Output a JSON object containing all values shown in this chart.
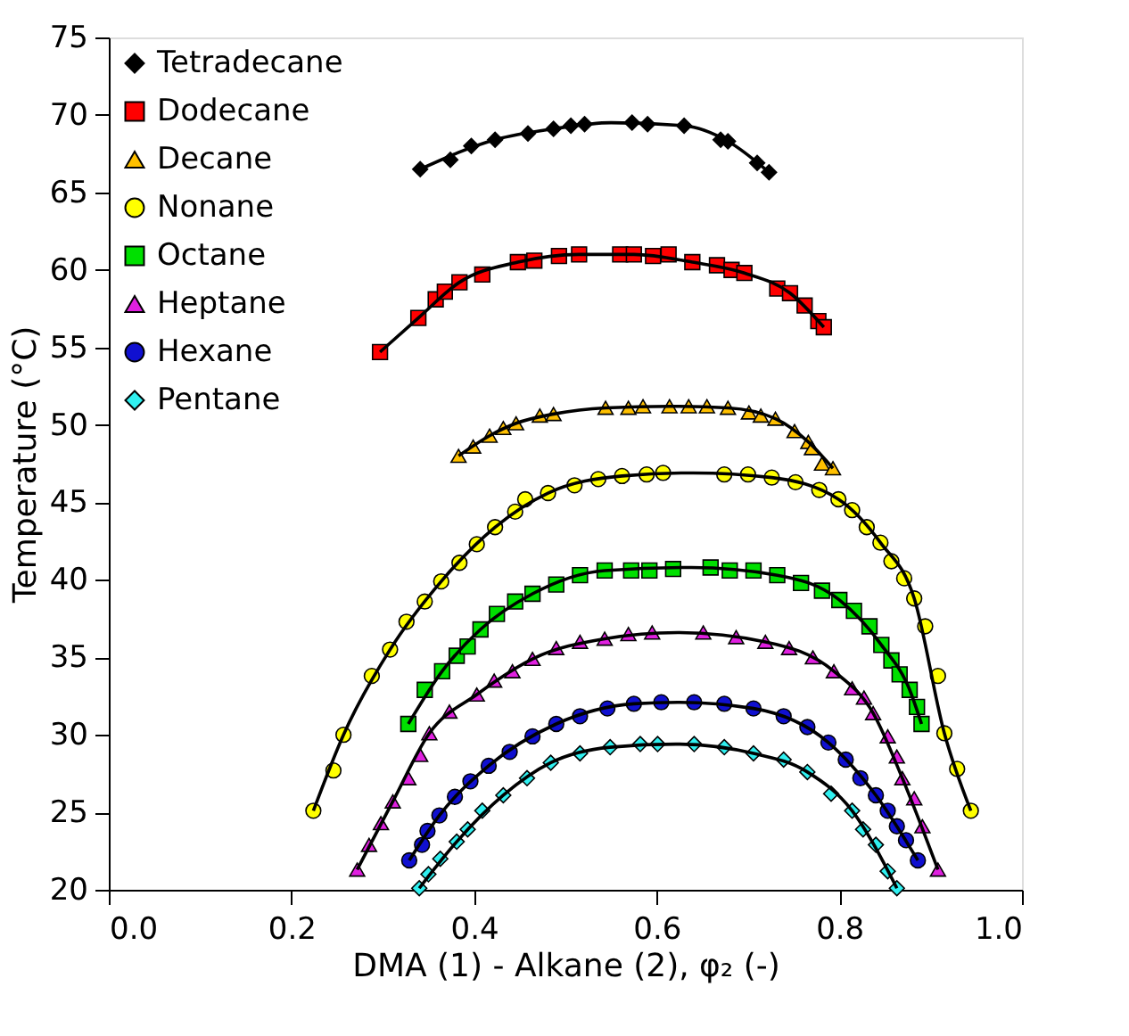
{
  "chart_data": {
    "type": "scatter",
    "xlabel": "DMA (1) - Alkane (2), φ₂ (-)",
    "ylabel": "Temperature (°C)",
    "xlim": [
      0,
      1
    ],
    "ylim": [
      20,
      75
    ],
    "xticks": [
      {
        "value": 0,
        "label": "0.0"
      },
      0.2,
      0.4,
      0.6,
      0.8,
      {
        "value": 1,
        "label": "1.0"
      }
    ],
    "yticks": [
      20,
      25,
      30,
      35,
      40,
      45,
      50,
      55,
      60,
      65,
      70,
      75
    ],
    "grid": false,
    "legend": "top left",
    "series": [
      {
        "name": "Tetradecane",
        "color": "#000000",
        "marker": "diamond",
        "x": [
          0.341,
          0.374,
          0.397,
          0.423,
          0.459,
          0.487,
          0.506,
          0.521,
          0.573,
          0.59,
          0.63,
          0.67,
          0.678,
          0.71,
          0.723
        ],
        "values": [
          66.5,
          67.1,
          68.0,
          68.4,
          68.8,
          69.1,
          69.3,
          69.4,
          69.5,
          69.4,
          69.3,
          68.4,
          68.3,
          66.9,
          66.3
        ]
      },
      {
        "name": "Dodecane",
        "color": "#ff0000",
        "marker": "square",
        "x": [
          0.297,
          0.339,
          0.358,
          0.368,
          0.384,
          0.409,
          0.448,
          0.466,
          0.493,
          0.515,
          0.56,
          0.575,
          0.596,
          0.613,
          0.639,
          0.666,
          0.682,
          0.696,
          0.732,
          0.746,
          0.762,
          0.777,
          0.783
        ],
        "values": [
          54.7,
          56.9,
          58.1,
          58.6,
          59.2,
          59.7,
          60.5,
          60.6,
          60.9,
          61.0,
          61.0,
          61.0,
          60.9,
          61.0,
          60.5,
          60.3,
          60.0,
          59.8,
          58.8,
          58.5,
          57.7,
          56.7,
          56.3
        ]
      },
      {
        "name": "Decane",
        "color": "#ffc000",
        "marker": "triangle",
        "x": [
          0.383,
          0.399,
          0.417,
          0.432,
          0.446,
          0.472,
          0.487,
          0.544,
          0.569,
          0.585,
          0.614,
          0.635,
          0.655,
          0.678,
          0.701,
          0.714,
          0.73,
          0.751,
          0.766,
          0.77,
          0.781,
          0.793
        ],
        "values": [
          48.0,
          48.6,
          49.3,
          49.8,
          50.1,
          50.6,
          50.7,
          51.1,
          51.1,
          51.2,
          51.2,
          51.2,
          51.2,
          51.1,
          50.8,
          50.6,
          50.4,
          49.6,
          48.9,
          48.5,
          47.5,
          47.2
        ]
      },
      {
        "name": "Nonane",
        "color": "#ffff00",
        "marker": "circle",
        "x": [
          0.224,
          0.246,
          0.257,
          0.288,
          0.308,
          0.326,
          0.346,
          0.364,
          0.384,
          0.403,
          0.423,
          0.445,
          0.456,
          0.481,
          0.51,
          0.536,
          0.562,
          0.589,
          0.607,
          0.674,
          0.7,
          0.726,
          0.752,
          0.778,
          0.799,
          0.814,
          0.83,
          0.845,
          0.857,
          0.871,
          0.882,
          0.894,
          0.908,
          0.915,
          0.929,
          0.944
        ],
        "values": [
          25.1,
          27.7,
          30.0,
          33.8,
          35.5,
          37.3,
          38.6,
          39.9,
          41.1,
          42.3,
          43.4,
          44.4,
          45.2,
          45.6,
          46.1,
          46.5,
          46.7,
          46.8,
          46.9,
          46.8,
          46.8,
          46.6,
          46.3,
          45.8,
          45.2,
          44.5,
          43.4,
          42.4,
          41.2,
          40.1,
          38.8,
          37.0,
          33.8,
          30.1,
          27.8,
          25.1
        ]
      },
      {
        "name": "Octane",
        "color": "#00e000",
        "marker": "square",
        "x": [
          0.328,
          0.346,
          0.365,
          0.381,
          0.393,
          0.407,
          0.425,
          0.445,
          0.464,
          0.49,
          0.516,
          0.543,
          0.572,
          0.592,
          0.618,
          0.659,
          0.68,
          0.706,
          0.732,
          0.758,
          0.781,
          0.8,
          0.816,
          0.833,
          0.846,
          0.857,
          0.866,
          0.877,
          0.885,
          0.89
        ],
        "values": [
          30.7,
          32.9,
          34.1,
          35.1,
          35.7,
          36.8,
          37.8,
          38.6,
          39.1,
          39.7,
          40.3,
          40.6,
          40.6,
          40.6,
          40.7,
          40.8,
          40.6,
          40.6,
          40.3,
          39.8,
          39.3,
          38.7,
          38.0,
          37.0,
          35.8,
          34.8,
          33.9,
          32.9,
          31.8,
          30.7
        ]
      },
      {
        "name": "Heptane",
        "color": "#e020e0",
        "marker": "triangle",
        "x": [
          0.272,
          0.285,
          0.298,
          0.311,
          0.328,
          0.341,
          0.351,
          0.373,
          0.403,
          0.422,
          0.442,
          0.464,
          0.49,
          0.516,
          0.543,
          0.569,
          0.595,
          0.651,
          0.687,
          0.719,
          0.745,
          0.771,
          0.794,
          0.814,
          0.827,
          0.837,
          0.853,
          0.863,
          0.869,
          0.882,
          0.891,
          0.908
        ],
        "values": [
          21.3,
          22.9,
          24.3,
          25.7,
          27.2,
          28.7,
          30.1,
          31.5,
          32.6,
          33.5,
          34.1,
          34.9,
          35.6,
          36.0,
          36.2,
          36.5,
          36.6,
          36.6,
          36.3,
          36.0,
          35.6,
          35.0,
          34.1,
          33.0,
          32.4,
          31.4,
          29.9,
          28.6,
          27.2,
          25.9,
          24.1,
          21.3
        ]
      },
      {
        "name": "Hexane",
        "color": "#1010d0",
        "marker": "circle",
        "x": [
          0.329,
          0.343,
          0.349,
          0.362,
          0.379,
          0.396,
          0.416,
          0.439,
          0.464,
          0.49,
          0.516,
          0.546,
          0.575,
          0.605,
          0.641,
          0.674,
          0.706,
          0.739,
          0.765,
          0.788,
          0.807,
          0.823,
          0.84,
          0.853,
          0.863,
          0.873,
          0.886
        ],
        "values": [
          21.9,
          22.9,
          23.8,
          24.8,
          26.0,
          27.0,
          28.0,
          28.9,
          29.9,
          30.7,
          31.2,
          31.7,
          32.0,
          32.1,
          32.1,
          32.0,
          31.7,
          31.2,
          30.5,
          29.5,
          28.4,
          27.2,
          26.1,
          25.1,
          24.1,
          23.2,
          21.9
        ]
      },
      {
        "name": "Pentane",
        "color": "#30f0f0",
        "marker": "diamond",
        "x": [
          0.34,
          0.35,
          0.363,
          0.381,
          0.393,
          0.409,
          0.432,
          0.458,
          0.484,
          0.516,
          0.549,
          0.582,
          0.601,
          0.641,
          0.674,
          0.706,
          0.739,
          0.765,
          0.791,
          0.814,
          0.826,
          0.84,
          0.853,
          0.863
        ],
        "values": [
          20.1,
          21.0,
          22.0,
          23.1,
          23.9,
          25.1,
          26.1,
          27.2,
          28.2,
          28.8,
          29.2,
          29.4,
          29.4,
          29.4,
          29.2,
          28.8,
          28.4,
          27.6,
          26.2,
          25.1,
          23.9,
          22.9,
          21.2,
          20.1
        ]
      },
      {
        "type": "line",
        "color": "#000000",
        "x": [
          0.341,
          0.423,
          0.487,
          0.55,
          0.63,
          0.678,
          0.723
        ],
        "values": [
          66.5,
          68.4,
          69.1,
          69.5,
          69.3,
          68.3,
          66.3
        ]
      },
      {
        "type": "line",
        "color": "#000000",
        "x": [
          0.297,
          0.339,
          0.384,
          0.448,
          0.515,
          0.575,
          0.639,
          0.696,
          0.746,
          0.783
        ],
        "values": [
          54.7,
          56.9,
          59.2,
          60.5,
          61.0,
          61.0,
          60.5,
          59.8,
          58.5,
          56.3
        ]
      },
      {
        "type": "line",
        "color": "#000000",
        "x": [
          0.383,
          0.417,
          0.446,
          0.487,
          0.544,
          0.614,
          0.678,
          0.73,
          0.766,
          0.793
        ],
        "values": [
          48.0,
          49.3,
          50.1,
          50.7,
          51.1,
          51.2,
          51.1,
          50.4,
          48.9,
          47.2
        ]
      },
      {
        "type": "line",
        "color": "#000000",
        "x": [
          0.224,
          0.257,
          0.308,
          0.364,
          0.423,
          0.481,
          0.562,
          0.64,
          0.726,
          0.799,
          0.845,
          0.882,
          0.915,
          0.944
        ],
        "values": [
          25.1,
          30.0,
          35.5,
          39.9,
          43.4,
          45.6,
          46.7,
          46.9,
          46.6,
          45.2,
          42.4,
          38.8,
          30.1,
          25.1
        ]
      },
      {
        "type": "line",
        "color": "#000000",
        "x": [
          0.328,
          0.365,
          0.407,
          0.464,
          0.543,
          0.638,
          0.732,
          0.8,
          0.846,
          0.877,
          0.89
        ],
        "values": [
          30.7,
          34.1,
          36.8,
          39.1,
          40.6,
          40.8,
          40.3,
          38.7,
          35.8,
          32.9,
          30.7
        ]
      },
      {
        "type": "line",
        "color": "#000000",
        "x": [
          0.272,
          0.311,
          0.351,
          0.403,
          0.464,
          0.543,
          0.623,
          0.719,
          0.794,
          0.837,
          0.869,
          0.908
        ],
        "values": [
          21.3,
          25.7,
          30.1,
          32.6,
          34.9,
          36.2,
          36.6,
          36.0,
          34.1,
          31.4,
          27.2,
          21.3
        ]
      },
      {
        "type": "line",
        "color": "#000000",
        "x": [
          0.329,
          0.362,
          0.416,
          0.49,
          0.575,
          0.623,
          0.706,
          0.788,
          0.84,
          0.886
        ],
        "values": [
          21.9,
          24.8,
          28.0,
          30.7,
          32.0,
          32.1,
          31.7,
          29.5,
          26.1,
          21.9
        ]
      },
      {
        "type": "line",
        "color": "#000000",
        "x": [
          0.34,
          0.381,
          0.432,
          0.484,
          0.549,
          0.621,
          0.706,
          0.765,
          0.814,
          0.863
        ],
        "values": [
          20.1,
          23.1,
          26.1,
          28.2,
          29.2,
          29.4,
          28.8,
          27.6,
          25.1,
          20.1
        ]
      }
    ]
  }
}
